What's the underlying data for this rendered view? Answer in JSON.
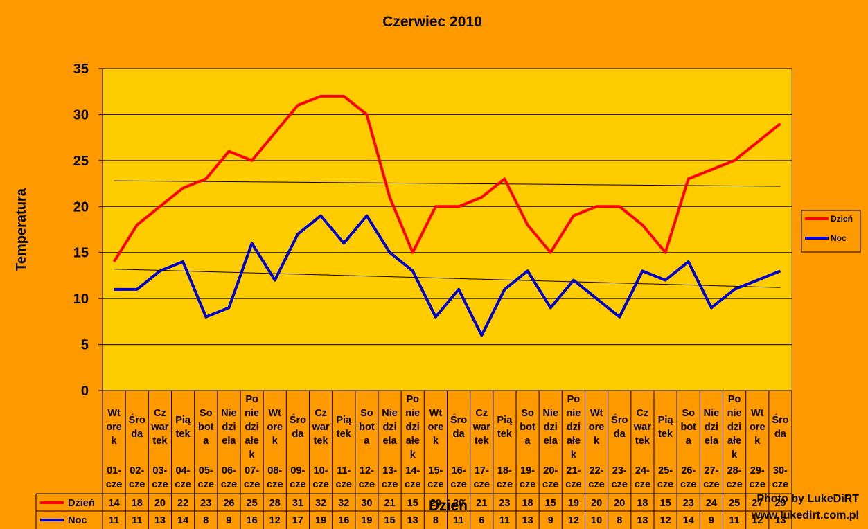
{
  "chart_data": {
    "type": "line",
    "title": "Czerwiec 2010",
    "xlabel": "Dzień",
    "ylabel": "Temperatura",
    "ylim": [
      0,
      35
    ],
    "yticks": [
      0,
      5,
      10,
      15,
      20,
      25,
      30,
      35
    ],
    "grid": true,
    "legend_position": "right",
    "categories": [
      {
        "day_lines": [
          "Wt",
          "ore",
          "k"
        ],
        "date_lines": [
          "01-",
          "cze"
        ]
      },
      {
        "day_lines": [
          "Śro",
          "da"
        ],
        "date_lines": [
          "02-",
          "cze"
        ]
      },
      {
        "day_lines": [
          "Cz",
          "war",
          "tek"
        ],
        "date_lines": [
          "03-",
          "cze"
        ]
      },
      {
        "day_lines": [
          "Pią",
          "tek"
        ],
        "date_lines": [
          "04-",
          "cze"
        ]
      },
      {
        "day_lines": [
          "So",
          "bot",
          "a"
        ],
        "date_lines": [
          "05-",
          "cze"
        ]
      },
      {
        "day_lines": [
          "Nie",
          "dzi",
          "ela"
        ],
        "date_lines": [
          "06-",
          "cze"
        ]
      },
      {
        "day_lines": [
          "Po",
          "nie",
          "dzi",
          "ałe",
          "k"
        ],
        "date_lines": [
          "07-",
          "cze"
        ]
      },
      {
        "day_lines": [
          "Wt",
          "ore",
          "k"
        ],
        "date_lines": [
          "08-",
          "cze"
        ]
      },
      {
        "day_lines": [
          "Śro",
          "da"
        ],
        "date_lines": [
          "09-",
          "cze"
        ]
      },
      {
        "day_lines": [
          "Cz",
          "war",
          "tek"
        ],
        "date_lines": [
          "10-",
          "cze"
        ]
      },
      {
        "day_lines": [
          "Pią",
          "tek"
        ],
        "date_lines": [
          "11-",
          "cze"
        ]
      },
      {
        "day_lines": [
          "So",
          "bot",
          "a"
        ],
        "date_lines": [
          "12-",
          "cze"
        ]
      },
      {
        "day_lines": [
          "Nie",
          "dzi",
          "ela"
        ],
        "date_lines": [
          "13-",
          "cze"
        ]
      },
      {
        "day_lines": [
          "Po",
          "nie",
          "dzi",
          "ałe",
          "k"
        ],
        "date_lines": [
          "14-",
          "cze"
        ]
      },
      {
        "day_lines": [
          "Wt",
          "ore",
          "k"
        ],
        "date_lines": [
          "15-",
          "cze"
        ]
      },
      {
        "day_lines": [
          "Śro",
          "da"
        ],
        "date_lines": [
          "16-",
          "cze"
        ]
      },
      {
        "day_lines": [
          "Cz",
          "war",
          "tek"
        ],
        "date_lines": [
          "17-",
          "cze"
        ]
      },
      {
        "day_lines": [
          "Pią",
          "tek"
        ],
        "date_lines": [
          "18-",
          "cze"
        ]
      },
      {
        "day_lines": [
          "So",
          "bot",
          "a"
        ],
        "date_lines": [
          "19-",
          "cze"
        ]
      },
      {
        "day_lines": [
          "Nie",
          "dzi",
          "ela"
        ],
        "date_lines": [
          "20-",
          "cze"
        ]
      },
      {
        "day_lines": [
          "Po",
          "nie",
          "dzi",
          "ałe",
          "k"
        ],
        "date_lines": [
          "21-",
          "cze"
        ]
      },
      {
        "day_lines": [
          "Wt",
          "ore",
          "k"
        ],
        "date_lines": [
          "22-",
          "cze"
        ]
      },
      {
        "day_lines": [
          "Śro",
          "da"
        ],
        "date_lines": [
          "23-",
          "cze"
        ]
      },
      {
        "day_lines": [
          "Cz",
          "war",
          "tek"
        ],
        "date_lines": [
          "24-",
          "cze"
        ]
      },
      {
        "day_lines": [
          "Pią",
          "tek"
        ],
        "date_lines": [
          "25-",
          "cze"
        ]
      },
      {
        "day_lines": [
          "So",
          "bot",
          "a"
        ],
        "date_lines": [
          "26-",
          "cze"
        ]
      },
      {
        "day_lines": [
          "Nie",
          "dzi",
          "ela"
        ],
        "date_lines": [
          "27-",
          "cze"
        ]
      },
      {
        "day_lines": [
          "Po",
          "nie",
          "dzi",
          "ałe",
          "k"
        ],
        "date_lines": [
          "28-",
          "cze"
        ]
      },
      {
        "day_lines": [
          "Wt",
          "ore",
          "k"
        ],
        "date_lines": [
          "29-",
          "cze"
        ]
      },
      {
        "day_lines": [
          "Śro",
          "da"
        ],
        "date_lines": [
          "30-",
          "cze"
        ]
      }
    ],
    "series": [
      {
        "name": "Dzień",
        "color": "#FF0000",
        "values": [
          14,
          18,
          20,
          22,
          23,
          26,
          25,
          28,
          31,
          32,
          32,
          30,
          21,
          15,
          20,
          20,
          21,
          23,
          18,
          15,
          19,
          20,
          20,
          18,
          15,
          23,
          24,
          25,
          27,
          29
        ],
        "trendline": [
          22.8,
          22.2
        ]
      },
      {
        "name": "Noc",
        "color": "#0000CC",
        "values": [
          11,
          11,
          13,
          14,
          8,
          9,
          16,
          12,
          17,
          19,
          16,
          19,
          15,
          13,
          8,
          11,
          6,
          11,
          13,
          9,
          12,
          10,
          8,
          13,
          12,
          14,
          9,
          11,
          12,
          13
        ],
        "trendline": [
          13.2,
          11.2
        ]
      }
    ]
  },
  "credit": [
    "Photo by LukeDiRT",
    "www.lukedirt.com.pl"
  ],
  "colors": {
    "background": "#FF9900",
    "plot_area": "#FFCC00",
    "trend": "#000000"
  }
}
